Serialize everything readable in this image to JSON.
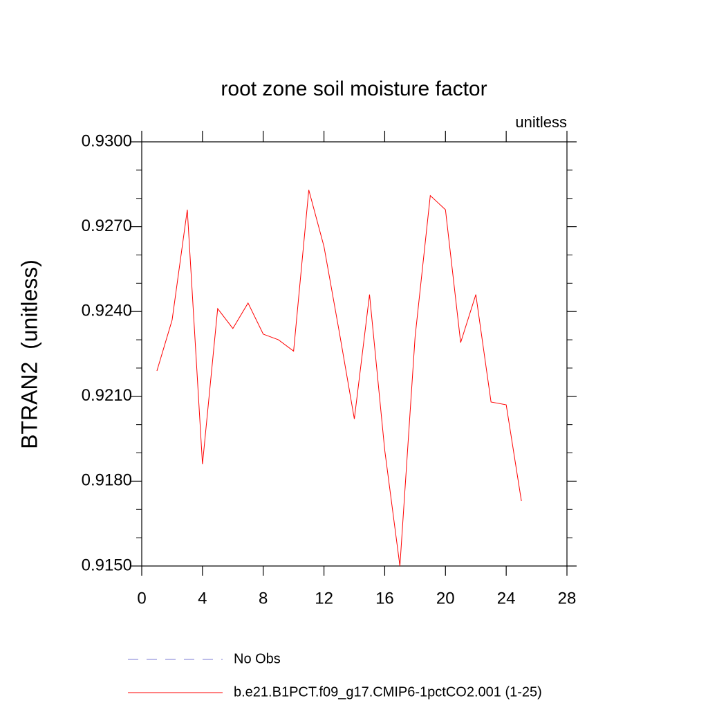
{
  "chart_data": {
    "type": "line",
    "title": "root zone soil moisture factor",
    "annotation": "unitless",
    "y_label": "BTRAN2  (unitless)",
    "x": [
      1,
      2,
      3,
      4,
      5,
      6,
      7,
      8,
      9,
      10,
      11,
      12,
      13,
      14,
      15,
      16,
      17,
      18,
      19,
      20,
      21,
      22,
      23,
      24,
      25
    ],
    "series": [
      {
        "name": "b.e21.B1PCT.f09_g17.CMIP6-1pctCO2.001 (1-25)",
        "color": "#ff0000",
        "values": [
          0.9219,
          0.9237,
          0.9276,
          0.9186,
          0.9241,
          0.9234,
          0.9243,
          0.9232,
          0.923,
          0.9226,
          0.9283,
          0.9263,
          0.9233,
          0.9202,
          0.9246,
          0.9191,
          0.915,
          0.9231,
          0.9281,
          0.9276,
          0.9229,
          0.9246,
          0.9208,
          0.9207,
          0.9173
        ]
      }
    ],
    "legend_extra": [
      {
        "name": "No Obs",
        "color": "#7b7bd6",
        "dashed": true
      }
    ],
    "xlim": [
      0,
      28
    ],
    "xticks": [
      0,
      4,
      8,
      12,
      16,
      20,
      24,
      28
    ],
    "ylim": [
      0.915,
      0.93
    ],
    "yticks": [
      {
        "value": 0.915,
        "label": "0.9150"
      },
      {
        "value": 0.918,
        "label": "0.9180"
      },
      {
        "value": 0.921,
        "label": "0.9210"
      },
      {
        "value": 0.924,
        "label": "0.9240"
      },
      {
        "value": 0.927,
        "label": "0.9270"
      },
      {
        "value": 0.93,
        "label": "0.9300"
      }
    ],
    "yminorticks": [
      0.916,
      0.917,
      0.919,
      0.92,
      0.922,
      0.923,
      0.925,
      0.926,
      0.928,
      0.929
    ]
  }
}
